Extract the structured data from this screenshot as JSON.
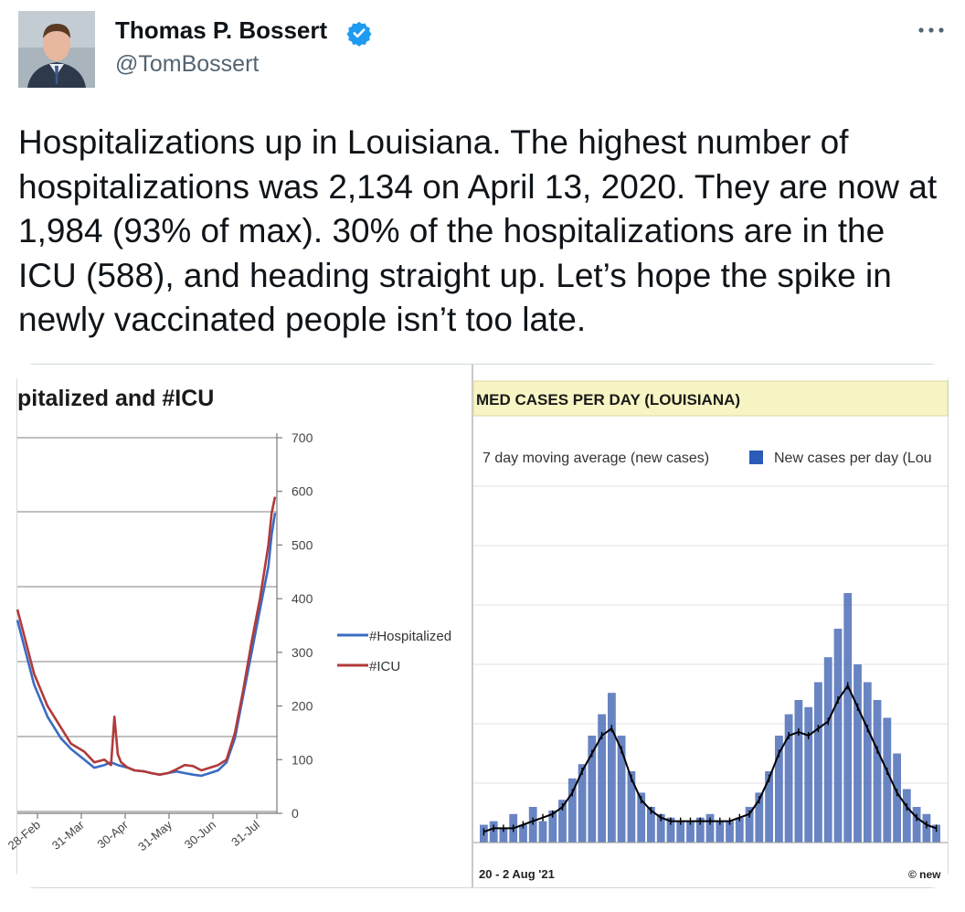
{
  "tweet": {
    "author_name": "Thomas P. Bossert",
    "handle": "@TomBossert",
    "text": "Hospitalizations up in Louisiana. The highest number of hospitalizations was 2,134 on April 13, 2020. They are now at 1,984 (93% of max). 30% of the hospitalizations are in the ICU (588), and heading straight up. Let’s hope the spike in newly vaccinated people isn’t too late.",
    "icons": {
      "verified": "verified-badge-icon",
      "more": "more-options-icon",
      "avatar": "profile-avatar"
    },
    "colors": {
      "verified": "#1d9bf0",
      "text": "#0f1419",
      "secondary": "#536471"
    }
  },
  "left_chart": {
    "title": "pitalized and #ICU",
    "y_ticks": [
      "700",
      "600",
      "500",
      "400",
      "300",
      "200",
      "100",
      "0"
    ],
    "x_ticks": [
      "28-Feb",
      "31-Mar",
      "30-Apr",
      "31-May",
      "30-Jun",
      "31-Jul"
    ],
    "legend": [
      {
        "label": "#Hospitalized",
        "color": "#3a6cc2"
      },
      {
        "label": "#ICU",
        "color": "#b23a3a"
      }
    ]
  },
  "right_chart": {
    "title": "MED CASES PER DAY (LOUISIANA)",
    "legend_line": "7 day moving average (new cases)",
    "legend_bar": "New cases per day (Lou",
    "date_range": "20  -  2 Aug '21",
    "credit": "© new",
    "colors": {
      "bar": "#4f6fb8",
      "line": "#000000",
      "title_bg": "#f7f5c4"
    }
  },
  "chart_data": [
    {
      "type": "line",
      "title": "pitalized and #ICU",
      "x_ticks": [
        "28-Feb",
        "31-Mar",
        "30-Apr",
        "31-May",
        "30-Jun",
        "31-Jul"
      ],
      "ylim": [
        0,
        700
      ],
      "grid": true,
      "legend_position": "right",
      "series": [
        {
          "name": "#Hospitalized",
          "x": [
            0,
            5,
            10,
            18,
            26,
            32,
            40,
            46,
            52,
            56,
            60,
            66,
            70,
            76,
            80,
            85,
            90,
            95,
            100,
            105,
            110,
            115,
            120,
            125,
            130,
            135,
            140,
            145,
            150,
            152,
            154
          ],
          "y": [
            360,
            300,
            240,
            180,
            140,
            120,
            100,
            85,
            90,
            95,
            90,
            85,
            80,
            78,
            75,
            72,
            75,
            78,
            75,
            72,
            70,
            75,
            80,
            95,
            140,
            220,
            300,
            380,
            460,
            520,
            560
          ]
        },
        {
          "name": "#ICU",
          "x": [
            0,
            5,
            10,
            18,
            26,
            32,
            40,
            46,
            52,
            56,
            58,
            60,
            62,
            66,
            70,
            76,
            80,
            85,
            90,
            95,
            100,
            105,
            110,
            115,
            120,
            125,
            130,
            135,
            140,
            145,
            150,
            152,
            154
          ],
          "y": [
            380,
            320,
            260,
            200,
            160,
            130,
            115,
            95,
            100,
            90,
            180,
            110,
            95,
            85,
            80,
            78,
            75,
            72,
            75,
            82,
            90,
            88,
            80,
            85,
            90,
            100,
            150,
            230,
            320,
            400,
            500,
            560,
            590
          ]
        }
      ]
    },
    {
      "type": "bar",
      "title": "MED CASES PER DAY (LOUISIANA)",
      "legend_position": "top",
      "series": [
        {
          "name": "New cases per day (Lou",
          "values": [
            0.05,
            0.06,
            0.04,
            0.08,
            0.05,
            0.1,
            0.06,
            0.09,
            0.12,
            0.18,
            0.22,
            0.3,
            0.36,
            0.42,
            0.3,
            0.2,
            0.14,
            0.1,
            0.08,
            0.07,
            0.06,
            0.06,
            0.07,
            0.08,
            0.06,
            0.06,
            0.07,
            0.1,
            0.14,
            0.2,
            0.3,
            0.36,
            0.4,
            0.38,
            0.45,
            0.52,
            0.6,
            0.7,
            0.5,
            0.45,
            0.4,
            0.35,
            0.25,
            0.15,
            0.1,
            0.08,
            0.05
          ]
        },
        {
          "name": "7 day moving average (new cases)",
          "values": [
            0.03,
            0.04,
            0.04,
            0.04,
            0.05,
            0.06,
            0.07,
            0.08,
            0.1,
            0.14,
            0.2,
            0.25,
            0.3,
            0.32,
            0.26,
            0.18,
            0.12,
            0.09,
            0.07,
            0.06,
            0.06,
            0.06,
            0.06,
            0.06,
            0.06,
            0.06,
            0.07,
            0.08,
            0.12,
            0.18,
            0.25,
            0.3,
            0.31,
            0.3,
            0.32,
            0.34,
            0.4,
            0.44,
            0.38,
            0.32,
            0.26,
            0.2,
            0.14,
            0.1,
            0.07,
            0.05,
            0.04
          ]
        }
      ]
    }
  ]
}
